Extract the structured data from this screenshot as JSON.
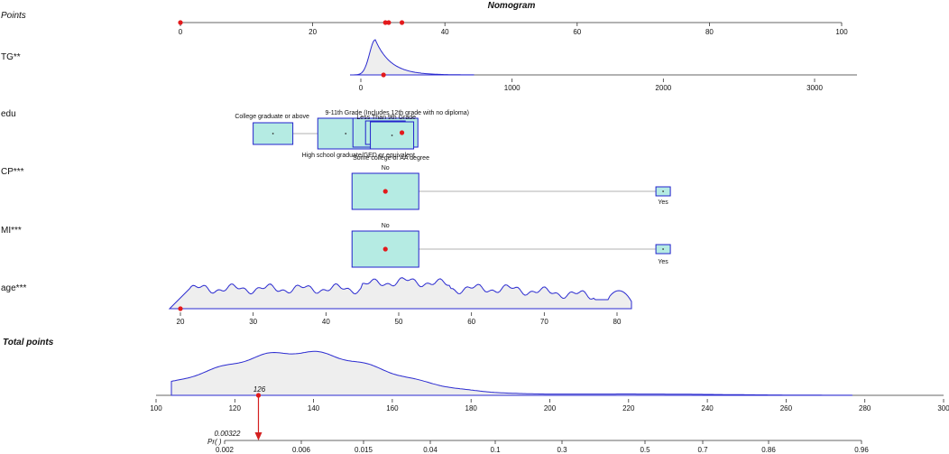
{
  "chart_data": {
    "type": "nomogram",
    "title": "Nomogram",
    "points_axis": {
      "label": "Points",
      "ticks": [
        0,
        20,
        40,
        60,
        80,
        100
      ],
      "markers": [
        0,
        31,
        31.5,
        33.5
      ]
    },
    "variables": [
      {
        "name": "TG**",
        "kind": "continuous",
        "ticks": [
          0,
          1000,
          2000,
          3000
        ],
        "selected_value": 150
      },
      {
        "name": "edu",
        "kind": "categorical",
        "categories": [
          {
            "label": "College graduate or above",
            "points": 14
          },
          {
            "label": "High school graduate/GED or equivalent",
            "points": 25
          },
          {
            "label": "9-11th Grade (Includes 12th grade with no diploma)",
            "points": 31
          },
          {
            "label": "Less Than 9th Grade",
            "points": 31
          },
          {
            "label": "Some college or AA degree",
            "points": 32
          }
        ],
        "selected_points": 33.5
      },
      {
        "name": "CP***",
        "kind": "categorical",
        "categories": [
          {
            "label": "No",
            "points": 31
          },
          {
            "label": "Yes",
            "points": 73
          }
        ],
        "selected_points": 31
      },
      {
        "name": "MI***",
        "kind": "categorical",
        "categories": [
          {
            "label": "No",
            "points": 31
          },
          {
            "label": "Yes",
            "points": 73
          }
        ],
        "selected_points": 31
      },
      {
        "name": "age***",
        "kind": "continuous",
        "ticks": [
          20,
          30,
          40,
          50,
          60,
          70,
          80
        ],
        "selected_value": 20
      }
    ],
    "total_points": {
      "label": "Total points",
      "ticks": [
        100,
        120,
        140,
        160,
        180,
        200,
        220,
        240,
        260,
        280,
        300
      ],
      "selected_value": 126,
      "selected_label": "126"
    },
    "probability": {
      "label": "Pr( )",
      "ticks": [
        "0.002",
        "0.006",
        "0.015",
        "0.04",
        "0.1",
        "0.3",
        "0.5",
        "0.7",
        "0.86",
        "0.96"
      ],
      "selected_label": "0.00322"
    }
  }
}
